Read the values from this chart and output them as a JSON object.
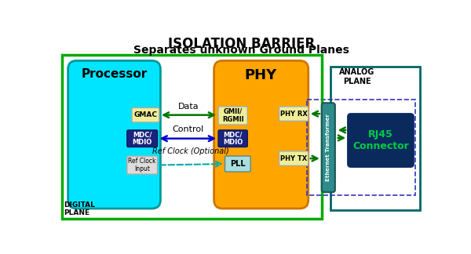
{
  "title_line1": "ISOLATION BARRIER",
  "title_line2": "Separates unknown Ground Planes",
  "digital_plane_label": "DIGITAL\nPLANE",
  "analog_plane_label": "ANALOG\nPLANE",
  "processor_label": "Processor",
  "phy_label": "PHY",
  "transformer_label": "Ethernet Transformer",
  "rj45_label": "RJ45\nConnector",
  "gmac_label": "GMAC",
  "mdc_mdio_proc_label": "MDC/\nMDIO",
  "ref_clock_label": "Ref Clock\nInput",
  "gmii_rgmii_label": "GMII/\nRGMII",
  "mdc_mdio_phy_label": "MDC/\nMDIO",
  "pll_label": "PLL",
  "phy_rx_label": "PHY RX",
  "phy_tx_label": "PHY TX",
  "data_arrow_label": "Data",
  "control_arrow_label": "Control",
  "ref_clock_arrow_label": "Ref Clock (Optional)",
  "bg_color": "#ffffff",
  "digital_plane_border": "#00aa00",
  "processor_fill": "#00e5ff",
  "processor_edge": "#009999",
  "phy_fill": "#ffa500",
  "phy_edge": "#cc7700",
  "analog_plane_border": "#006666",
  "transformer_fill": "#2e8b8b",
  "transformer_edge": "#1a5555",
  "rj45_fill": "#0a2a5e",
  "rj45_edge": "#0a2a5e",
  "rj45_text_color": "#00cc44",
  "gmac_fill": "#eeee99",
  "gmac_edge": "#aaaaaa",
  "mdc_proc_fill": "#1a237e",
  "mdc_proc_edge": "#0d1a5c",
  "ref_clock_fill": "#dddddd",
  "ref_clock_edge": "#aaaaaa",
  "gmii_fill": "#eeee99",
  "gmii_edge": "#aaaaaa",
  "mdc_phy_fill": "#1a237e",
  "mdc_phy_edge": "#0d1a5c",
  "pll_fill": "#aadddd",
  "pll_edge": "#558888",
  "phy_rx_fill": "#eeee99",
  "phy_rx_edge": "#aaaaaa",
  "phy_tx_fill": "#eeee99",
  "phy_tx_edge": "#aaaaaa",
  "arrow_green": "#007700",
  "arrow_blue": "#0000cc",
  "arrow_cyan": "#00aaaa",
  "dashed_border_color": "#3333bb",
  "white_text": "#ffffff",
  "black_text": "#000000"
}
